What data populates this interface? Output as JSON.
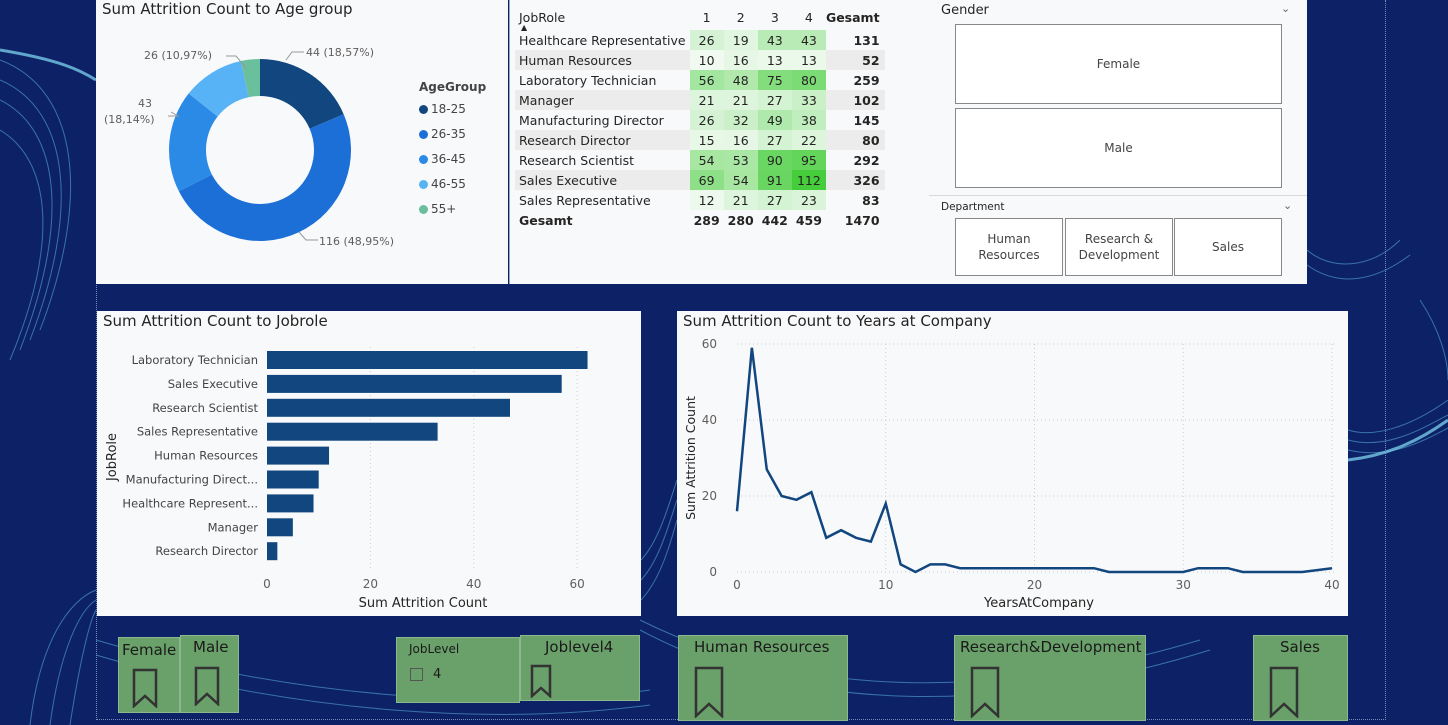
{
  "donut": {
    "title": "Sum Attrition Count to Age group",
    "legend_title": "AgeGroup",
    "colors": [
      "#12467f",
      "#1c6fd6",
      "#2a8ae6",
      "#57b3f5",
      "#6abf9c"
    ],
    "chart_data": {
      "type": "pie",
      "title": "Sum Attrition Count to Age group",
      "legend_title": "AgeGroup",
      "categories": [
        "18-25",
        "26-35",
        "36-45",
        "46-55",
        "55+"
      ],
      "values": [
        44,
        116,
        43,
        26,
        8
      ]
    },
    "labels": [
      "44 (18,57%)",
      "116 (48,95%)",
      "43",
      "(18,14%)",
      "26 (10,97%)"
    ],
    "legend": [
      "18-25",
      "26-35",
      "36-45",
      "46-55",
      "55+"
    ]
  },
  "matrix": {
    "row_header": "JobRole",
    "columns": [
      "1",
      "2",
      "3",
      "4",
      "Gesamt"
    ],
    "rows": [
      {
        "role": "Healthcare Representative",
        "v": [
          26,
          19,
          43,
          43
        ],
        "total": "131"
      },
      {
        "role": "Human Resources",
        "v": [
          10,
          16,
          13,
          13
        ],
        "total": "52"
      },
      {
        "role": "Laboratory Technician",
        "v": [
          56,
          48,
          75,
          80
        ],
        "total": "259"
      },
      {
        "role": "Manager",
        "v": [
          21,
          21,
          27,
          33
        ],
        "total": "102"
      },
      {
        "role": "Manufacturing Director",
        "v": [
          26,
          32,
          49,
          38
        ],
        "total": "145"
      },
      {
        "role": "Research Director",
        "v": [
          15,
          16,
          27,
          22
        ],
        "total": "80"
      },
      {
        "role": "Research Scientist",
        "v": [
          54,
          53,
          90,
          95
        ],
        "total": "292"
      },
      {
        "role": "Sales Executive",
        "v": [
          69,
          54,
          91,
          112
        ],
        "total": "326"
      },
      {
        "role": "Sales Representative",
        "v": [
          12,
          21,
          27,
          23
        ],
        "total": "83"
      }
    ],
    "total_row": {
      "label": "Gesamt",
      "v": [
        "289",
        "280",
        "442",
        "459"
      ],
      "total": "1470"
    }
  },
  "slicers": {
    "gender_title": "Gender",
    "gender_options": [
      "Female",
      "Male"
    ],
    "department_title": "Department",
    "department_options": [
      "Human Resources",
      "Research & Development",
      "Sales"
    ]
  },
  "bar": {
    "title": "Sum Attrition Count to Jobrole",
    "color": "#12467f",
    "chart_data": {
      "type": "bar",
      "title": "Sum Attrition Count to Jobrole",
      "xlabel": "Sum Attrition Count",
      "ylabel": "JobRole",
      "categories": [
        "Laboratory Technician",
        "Sales Executive",
        "Research Scientist",
        "Sales Representative",
        "Human Resources",
        "Manufacturing Direct...",
        "Healthcare Represent...",
        "Manager",
        "Research Director"
      ],
      "values": [
        62,
        57,
        47,
        33,
        12,
        10,
        9,
        5,
        2
      ],
      "xlim": [
        0,
        70
      ],
      "xticks": [
        "0",
        "20",
        "40",
        "60"
      ]
    }
  },
  "line": {
    "title": "Sum Attrition Count to Years at Company",
    "color": "#12467f",
    "chart_data": {
      "type": "line",
      "title": "Sum Attrition Count to Years at Company",
      "xlabel": "YearsAtCompany",
      "ylabel": "Sum Attrition Count",
      "x": [
        0,
        1,
        2,
        3,
        4,
        5,
        6,
        7,
        8,
        9,
        10,
        11,
        12,
        13,
        14,
        15,
        16,
        17,
        18,
        19,
        20,
        21,
        22,
        23,
        24,
        25,
        26,
        27,
        28,
        29,
        30,
        31,
        32,
        33,
        34,
        35,
        36,
        37,
        38,
        39,
        40
      ],
      "values": [
        16,
        59,
        27,
        20,
        19,
        21,
        9,
        11,
        9,
        8,
        18,
        2,
        0,
        2,
        2,
        1,
        1,
        1,
        1,
        1,
        1,
        1,
        1,
        1,
        1,
        0,
        0,
        0,
        0,
        0,
        0,
        1,
        1,
        1,
        0,
        0,
        0,
        0,
        0,
        0.5,
        1
      ],
      "xlim": [
        0,
        40
      ],
      "ylim": [
        0,
        60
      ],
      "xticks": [
        "0",
        "10",
        "20",
        "30",
        "40"
      ],
      "yticks": [
        "0",
        "20",
        "40",
        "60"
      ]
    }
  },
  "bookmarks": {
    "female": "Female",
    "male": "Male",
    "joblevel_title": "JobLevel",
    "joblevel_option": "4",
    "joblevel4": "Joblevel4",
    "hr": "Human Resources",
    "rd": "Research&Development",
    "sales": "Sales"
  }
}
